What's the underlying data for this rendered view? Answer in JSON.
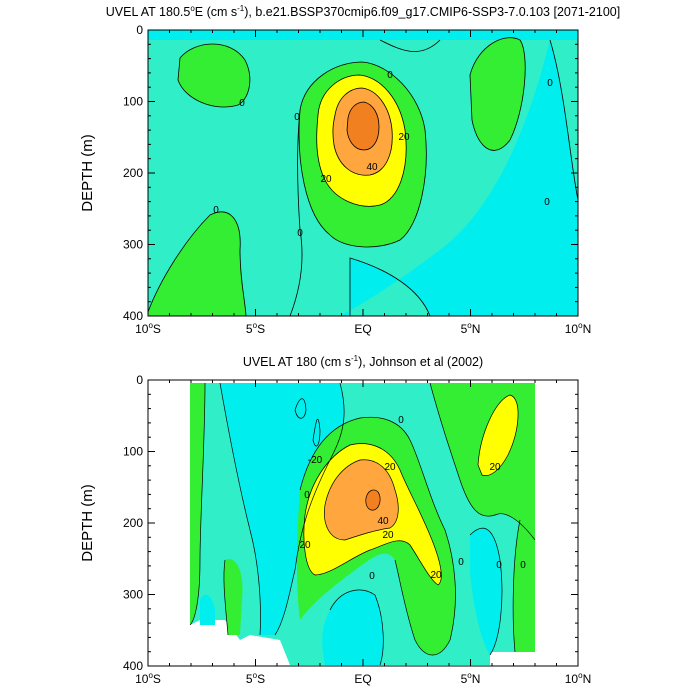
{
  "colors": {
    "lt_m20": "#00eeee",
    "m20_0": "#30eec8",
    "p0_20": "#33ee33",
    "p20_40": "#ffff00",
    "p40_60": "#ffa63f",
    "gt_60": "#f08020",
    "contour_line": "#000000"
  },
  "chart_data": [
    {
      "type": "heatmap",
      "title_main": "UVEL AT 180.5",
      "title_deg": "o",
      "title_rest": "E (cm s",
      "title_exp": "-1",
      "title_tail": "), b.e21.BSSP370cmip6.f09_g17.CMIP6-SSP3-7.0.103 [2071-2100]",
      "ylabel": "DEPTH (m)",
      "x_ticks": [
        {
          "label_num": "10",
          "label_deg": "o",
          "label_hem": "S"
        },
        {
          "label_num": "5",
          "label_deg": "o",
          "label_hem": "S"
        },
        {
          "label_num": "EQ",
          "label_deg": "",
          "label_hem": ""
        },
        {
          "label_num": "5",
          "label_deg": "o",
          "label_hem": "N"
        },
        {
          "label_num": "10",
          "label_deg": "o",
          "label_hem": "N"
        }
      ],
      "x_values": [
        -10,
        -5,
        0,
        5,
        10
      ],
      "y_ticks": [
        "0",
        "100",
        "200",
        "300",
        "400"
      ],
      "y_values": [
        0,
        100,
        200,
        300,
        400
      ],
      "xlim": [
        -10,
        10
      ],
      "ylim": [
        0,
        400
      ],
      "contour_labels": [
        "0",
        "0",
        "0",
        "0",
        "0",
        "0",
        "0",
        "20",
        "20",
        "40"
      ]
    },
    {
      "type": "heatmap",
      "title_main": "UVEL AT 180 (cm s",
      "title_exp": "-1",
      "title_tail": "), Johnson et al (2002)",
      "ylabel": "DEPTH (m)",
      "x_ticks": [
        {
          "label_num": "10",
          "label_deg": "o",
          "label_hem": "S"
        },
        {
          "label_num": "5",
          "label_deg": "o",
          "label_hem": "S"
        },
        {
          "label_num": "EQ",
          "label_deg": "",
          "label_hem": ""
        },
        {
          "label_num": "5",
          "label_deg": "o",
          "label_hem": "N"
        },
        {
          "label_num": "10",
          "label_deg": "o",
          "label_hem": "N"
        }
      ],
      "x_values": [
        -10,
        -5,
        0,
        5,
        10
      ],
      "y_ticks": [
        "0",
        "100",
        "200",
        "300",
        "400"
      ],
      "y_values": [
        0,
        100,
        200,
        300,
        400
      ],
      "xlim": [
        -10,
        10
      ],
      "ylim": [
        0,
        400
      ],
      "contour_labels": [
        "-20",
        "20",
        "20",
        "40",
        "20",
        "20",
        "20",
        "0",
        "0",
        "0",
        "0",
        "0",
        "0"
      ]
    }
  ]
}
